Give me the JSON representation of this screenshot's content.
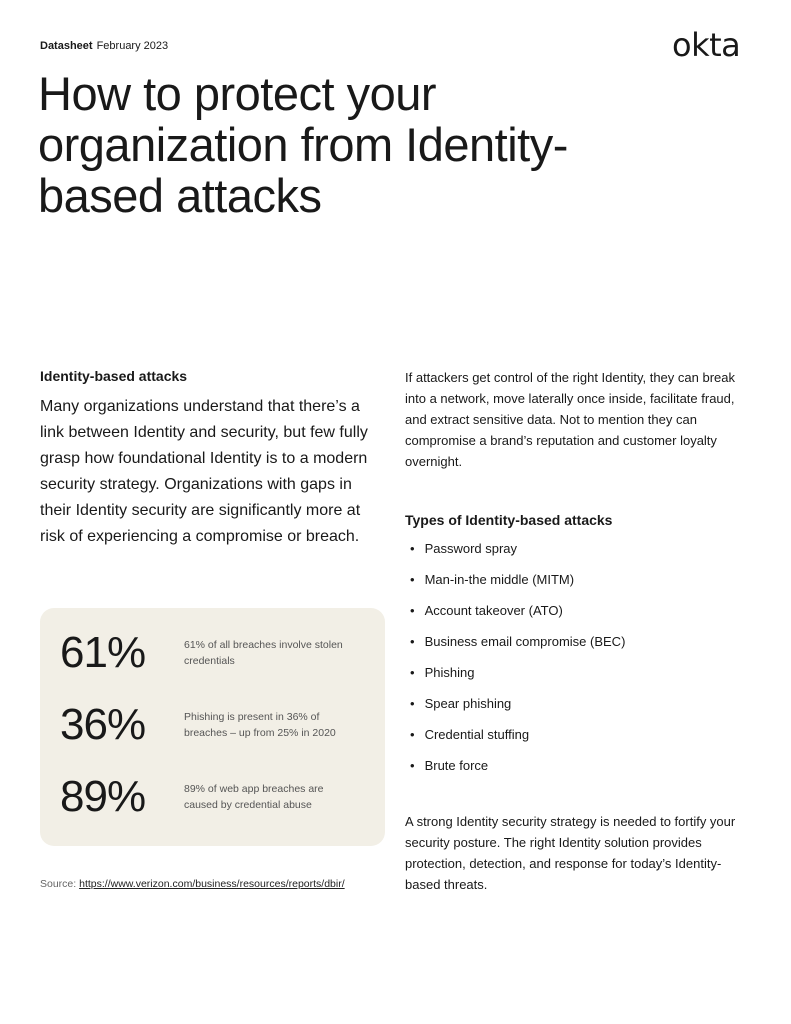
{
  "header": {
    "type": "Datasheet",
    "date": "February 2023",
    "logo": "okta"
  },
  "title": "How to protect your organization from Identity-based attacks",
  "left": {
    "heading": "Identity-based attacks",
    "intro": "Many organizations understand that there’s a link between Identity and security, but few fully grasp how foundational Identity is to a modern security strategy. Organizations with gaps in their Identity security are significantly more at risk of experiencing a compromise or breach."
  },
  "stats": [
    {
      "value": "61%",
      "description": "61% of all breaches involve stolen credentials"
    },
    {
      "value": "36%",
      "description": "Phishing is present in 36% of breaches – up from 25% in 2020"
    },
    {
      "value": "89%",
      "description": "89% of web app breaches are caused by credential abuse"
    }
  ],
  "source": {
    "label": "Source:",
    "url": "https://www.verizon.com/business/resources/reports/dbir/"
  },
  "right": {
    "paragraph": "If attackers get control of the right Identity, they can break into a network, move laterally once inside, facilitate fraud, and extract sensitive data. Not to mention they can compromise a brand’s reputation and customer loyalty overnight.",
    "types_heading": "Types of Identity-based attacks",
    "types": [
      "Password spray",
      "Man-in-the middle (MITM)",
      "Account takeover (ATO)",
      "Business email compromise (BEC)",
      "Phishing",
      "Spear phishing",
      "Credential stuffing",
      "Brute force"
    ],
    "closing": "A strong Identity security strategy is needed to fortify your security posture. The right Identity solution provides protection, detection, and response for today’s Identity-based threats."
  },
  "colors": {
    "stats_bg": "#f2efe6",
    "text": "#191919"
  }
}
